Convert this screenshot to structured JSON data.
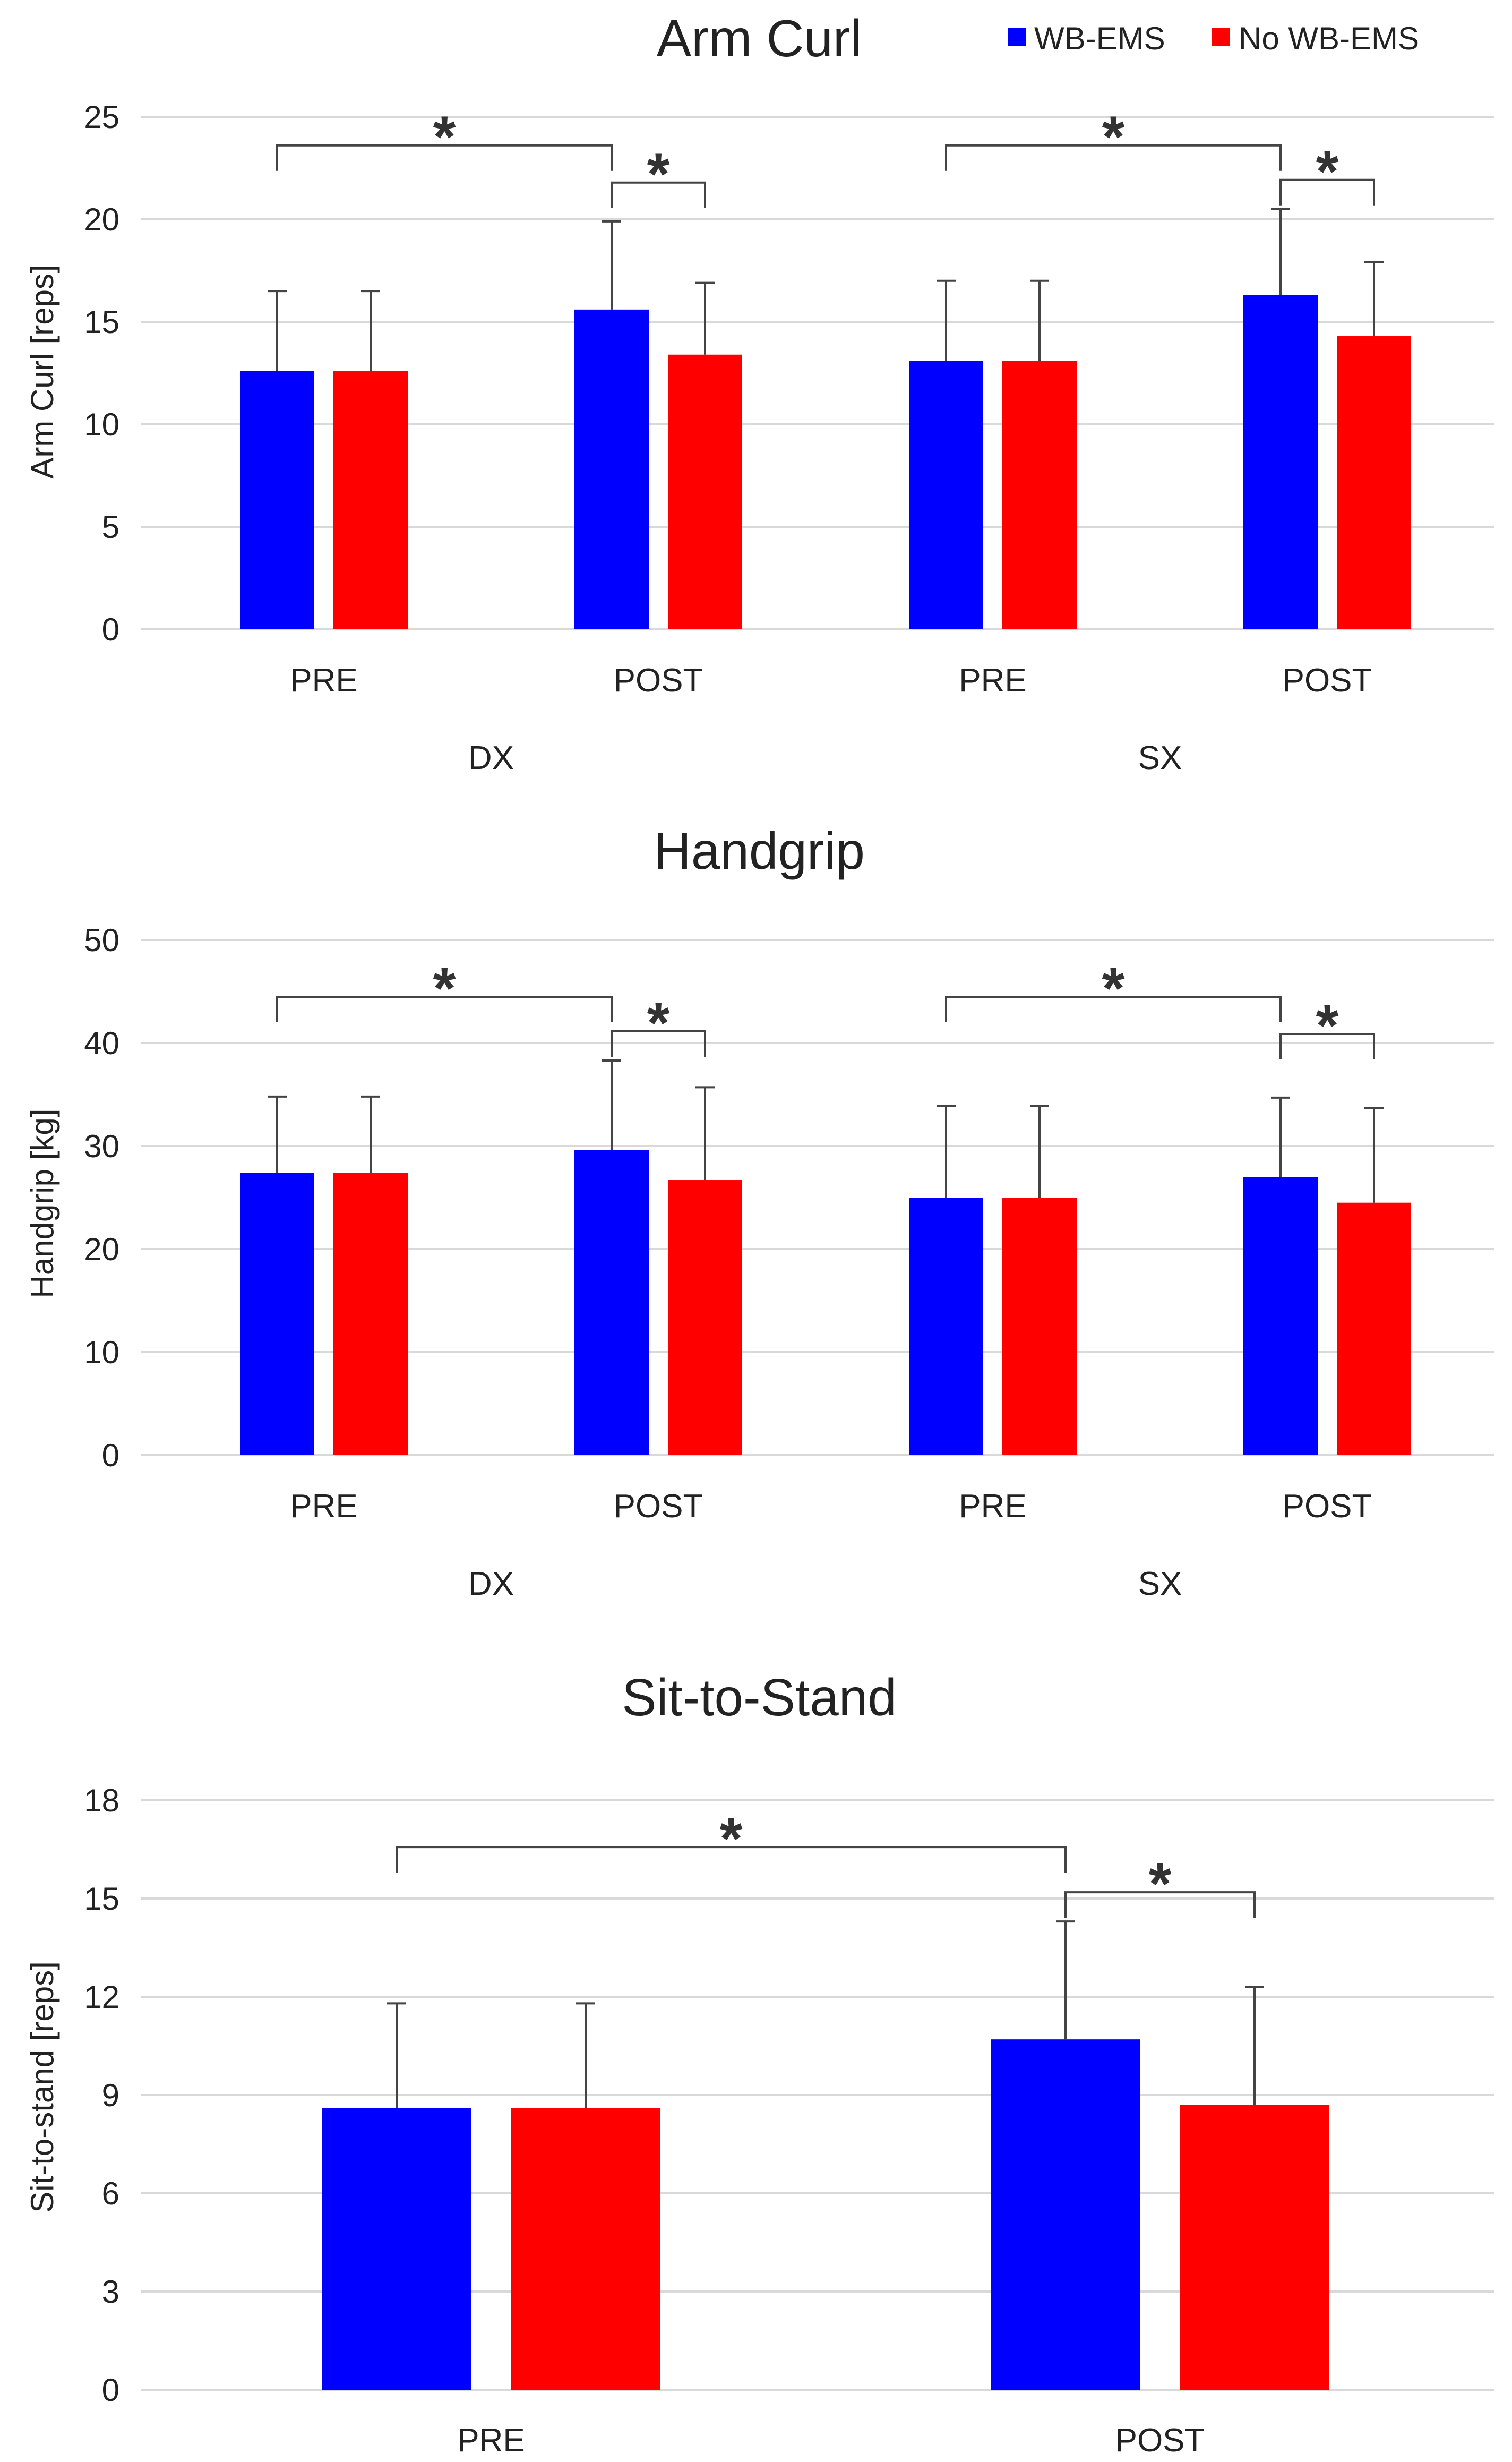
{
  "legend": [
    {
      "name": "WB-EMS",
      "color": "#0000ff"
    },
    {
      "name": "No WB-EMS",
      "color": "#ff0000"
    }
  ],
  "significance_marker": "*",
  "chart_data": [
    {
      "type": "bar",
      "title": "Arm Curl",
      "ylabel": "Arm Curl [reps]",
      "ylim": [
        0,
        25
      ],
      "yticks": [
        0,
        5,
        10,
        15,
        20,
        25
      ],
      "categories": [
        "PRE",
        "POST",
        "PRE",
        "POST"
      ],
      "groups": [
        "DX",
        "SX"
      ],
      "series": [
        {
          "name": "WB-EMS",
          "color": "#0000ff",
          "values": [
            12.6,
            15.6,
            13.1,
            16.3
          ],
          "errors": [
            3.9,
            4.3,
            3.9,
            4.2
          ]
        },
        {
          "name": "No WB-EMS",
          "color": "#ff0000",
          "values": [
            12.6,
            13.4,
            13.1,
            14.3
          ],
          "errors": [
            3.9,
            3.5,
            3.9,
            3.6
          ]
        }
      ],
      "significance": [
        {
          "from": [
            0,
            0
          ],
          "to": [
            1,
            0
          ],
          "label": "*"
        },
        {
          "from": [
            1,
            0
          ],
          "to": [
            1,
            1
          ],
          "label": "*"
        },
        {
          "from": [
            2,
            0
          ],
          "to": [
            3,
            0
          ],
          "label": "*"
        },
        {
          "from": [
            3,
            0
          ],
          "to": [
            3,
            1
          ],
          "label": "*"
        }
      ]
    },
    {
      "type": "bar",
      "title": "Handgrip",
      "ylabel": "Handgrip [kg]",
      "ylim": [
        0,
        50
      ],
      "yticks": [
        0,
        10,
        20,
        30,
        40,
        50
      ],
      "categories": [
        "PRE",
        "POST",
        "PRE",
        "POST"
      ],
      "groups": [
        "DX",
        "SX"
      ],
      "series": [
        {
          "name": "WB-EMS",
          "color": "#0000ff",
          "values": [
            27.4,
            29.6,
            25.0,
            27.0
          ],
          "errors": [
            7.4,
            8.7,
            8.9,
            7.7
          ]
        },
        {
          "name": "No WB-EMS",
          "color": "#ff0000",
          "values": [
            27.4,
            26.7,
            25.0,
            24.5
          ],
          "errors": [
            7.4,
            9.0,
            8.9,
            9.2
          ]
        }
      ],
      "significance": [
        {
          "from": [
            0,
            0
          ],
          "to": [
            1,
            0
          ],
          "label": "*"
        },
        {
          "from": [
            1,
            0
          ],
          "to": [
            1,
            1
          ],
          "label": "*"
        },
        {
          "from": [
            2,
            0
          ],
          "to": [
            3,
            0
          ],
          "label": "*"
        },
        {
          "from": [
            3,
            0
          ],
          "to": [
            3,
            1
          ],
          "label": "*"
        }
      ]
    },
    {
      "type": "bar",
      "title": "Sit-to-Stand",
      "ylabel": "Sit-to-stand [reps]",
      "ylim": [
        0,
        18
      ],
      "yticks": [
        0,
        3,
        6,
        9,
        12,
        15,
        18
      ],
      "categories": [
        "PRE",
        "POST"
      ],
      "groups": [],
      "series": [
        {
          "name": "WB-EMS",
          "color": "#0000ff",
          "values": [
            8.6,
            10.7
          ],
          "errors": [
            3.2,
            3.6
          ]
        },
        {
          "name": "No WB-EMS",
          "color": "#ff0000",
          "values": [
            8.6,
            8.7
          ],
          "errors": [
            3.2,
            3.6
          ]
        }
      ],
      "significance": [
        {
          "from": [
            0,
            0
          ],
          "to": [
            1,
            0
          ],
          "label": "*"
        },
        {
          "from": [
            1,
            0
          ],
          "to": [
            1,
            1
          ],
          "label": "*"
        }
      ]
    }
  ]
}
